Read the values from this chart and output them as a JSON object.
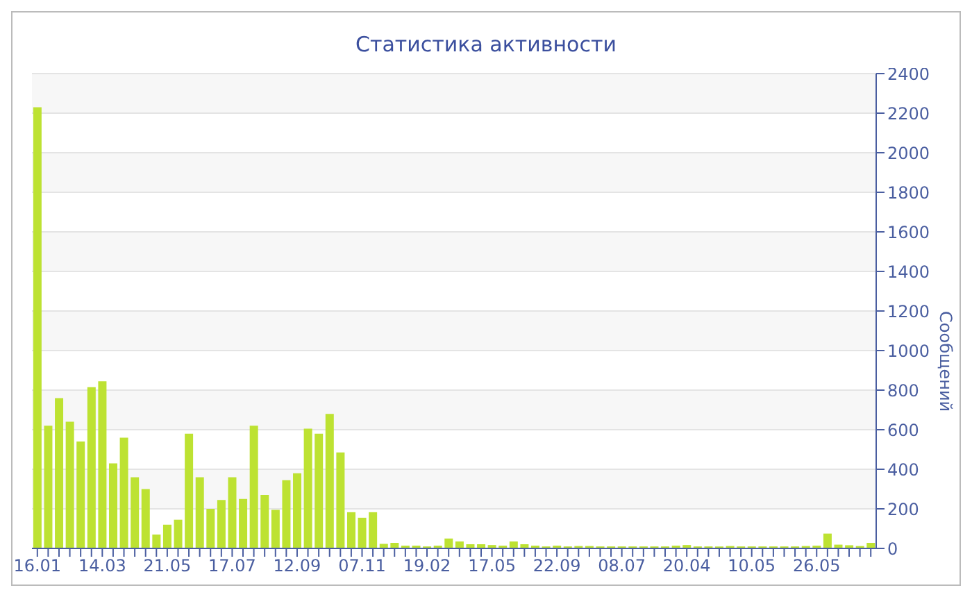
{
  "chart_data": {
    "type": "bar",
    "title": "Статистика активности",
    "ylabel": "Сообщений",
    "categories": [
      "16.01",
      null,
      null,
      null,
      null,
      null,
      "14.03",
      null,
      null,
      null,
      null,
      null,
      "21.05",
      null,
      null,
      null,
      null,
      null,
      "17.07",
      null,
      null,
      null,
      null,
      null,
      "12.09",
      null,
      null,
      null,
      null,
      null,
      "07.11",
      null,
      null,
      null,
      null,
      null,
      "19.02",
      null,
      null,
      null,
      null,
      null,
      "17.05",
      null,
      null,
      null,
      null,
      null,
      "22.09",
      null,
      null,
      null,
      null,
      null,
      "08.07",
      null,
      null,
      null,
      null,
      null,
      "20.04",
      null,
      null,
      null,
      null,
      null,
      "10.05",
      null,
      null,
      null,
      null,
      null,
      "26.05",
      null,
      null,
      null,
      null,
      null
    ],
    "values": [
      2230,
      620,
      760,
      640,
      540,
      815,
      845,
      430,
      560,
      360,
      300,
      70,
      120,
      145,
      580,
      360,
      200,
      245,
      360,
      250,
      620,
      270,
      195,
      345,
      380,
      605,
      580,
      680,
      485,
      183,
      155,
      183,
      23,
      28,
      14,
      14,
      10,
      14,
      50,
      35,
      21,
      21,
      17,
      14,
      35,
      21,
      14,
      10,
      14,
      10,
      12,
      12,
      10,
      10,
      10,
      10,
      10,
      10,
      10,
      14,
      17,
      10,
      10,
      10,
      12,
      10,
      10,
      10,
      10,
      10,
      10,
      12,
      14,
      75,
      19,
      16,
      12,
      28
    ],
    "color": "#bde232",
    "ylim": [
      0,
      2400
    ],
    "yticks": [
      0,
      200,
      400,
      600,
      800,
      1000,
      1200,
      1400,
      1600,
      1800,
      2000,
      2200,
      2400
    ],
    "grid": "y"
  }
}
